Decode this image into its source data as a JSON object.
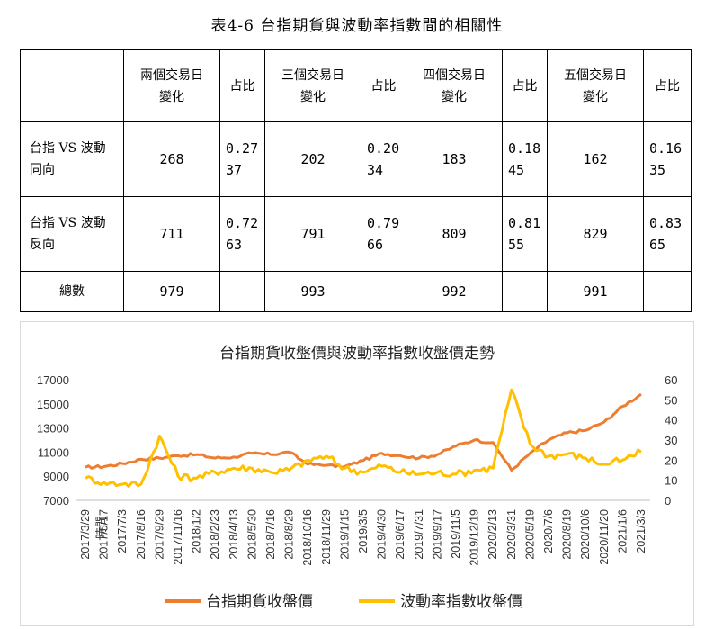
{
  "document": {
    "title": "表4-6  台指期貨與波動率指數間的相關性"
  },
  "table": {
    "columns": [
      "",
      "兩個交易日\n變化",
      "占比",
      "三個交易日\n變化",
      "占比",
      "四個交易日\n變化",
      "占比",
      "五個交易日\n變化",
      "占比"
    ],
    "rows": [
      {
        "label": "台指 VS 波動\n同向",
        "cells": [
          "268",
          "0.27\n37",
          "202",
          "0.20\n34",
          "183",
          "0.18\n45",
          "162",
          "0.16\n35"
        ]
      },
      {
        "label": "台指 VS 波動\n反向",
        "cells": [
          "711",
          "0.72\n63",
          "791",
          "0.79\n66",
          "809",
          "0.81\n55",
          "829",
          "0.83\n65"
        ]
      },
      {
        "label": "總數",
        "cells": [
          "979",
          "",
          "993",
          "",
          "992",
          "",
          "991",
          ""
        ]
      }
    ]
  },
  "chart_data": {
    "type": "line",
    "title": "台指期貨收盤價與波動率指數收盤價走勢",
    "xlabel": "時間",
    "x": [
      "2017/3/29",
      "2017/5/17",
      "2017/7/3",
      "2017/8/16",
      "2017/9/29",
      "2017/11/16",
      "2018/1/2",
      "2018/2/23",
      "2018/4/13",
      "2018/5/30",
      "2018/7/16",
      "2018/8/29",
      "2018/10/16",
      "2018/11/29",
      "2019/1/15",
      "2019/3/5",
      "2019/4/30",
      "2019/6/17",
      "2019/7/31",
      "2019/9/17",
      "2019/11/5",
      "2019/12/19",
      "2020/2/13",
      "2020/3/31",
      "2020/5/19",
      "2020/7/6",
      "2020/8/19",
      "2020/10/6",
      "2020/11/20",
      "2021/1/6",
      "2021/3/3"
    ],
    "y_left": {
      "min": 7000,
      "max": 17000,
      "ticks": [
        7000,
        9000,
        11000,
        13000,
        15000,
        17000
      ]
    },
    "y_right": {
      "min": 0,
      "max": 60,
      "ticks": [
        0,
        10,
        20,
        30,
        40,
        50,
        60
      ]
    },
    "legend_position": "bottom",
    "series": [
      {
        "name": "台指期貨收盤價",
        "axis": "left",
        "color": "#ed7d31",
        "values": [
          9750,
          9800,
          10050,
          10400,
          10500,
          10700,
          10800,
          10500,
          10600,
          10900,
          10800,
          11000,
          10000,
          9900,
          9800,
          10300,
          10900,
          10700,
          10500,
          10800,
          11500,
          12000,
          11800,
          9500,
          10900,
          12000,
          12600,
          12800,
          13500,
          14800,
          15800
        ]
      },
      {
        "name": "波動率指數收盤價",
        "axis": "right",
        "color": "#ffc000",
        "values": [
          11,
          9,
          8,
          8,
          32,
          12,
          11,
          14,
          16,
          16,
          14,
          15,
          20,
          22,
          16,
          14,
          17,
          14,
          13,
          14,
          13,
          15,
          16,
          55,
          28,
          22,
          23,
          21,
          18,
          20,
          24
        ]
      }
    ]
  }
}
